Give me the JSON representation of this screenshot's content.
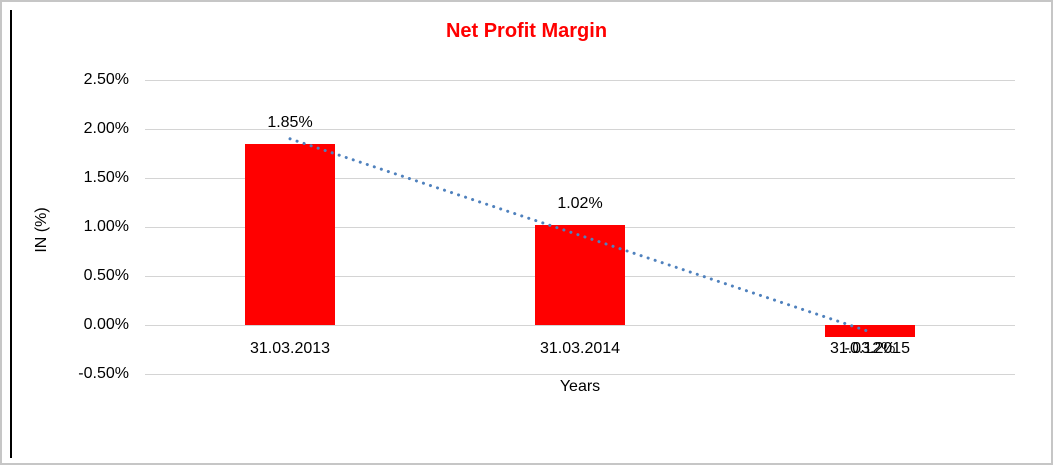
{
  "chart_data": {
    "type": "bar",
    "title": "Net Profit Margin",
    "title_color": "#FF0000",
    "xlabel": "Years",
    "ylabel": "IN (%)",
    "categories": [
      "31.03.2013",
      "31.03.2014",
      "31.03.2015"
    ],
    "values": [
      1.85,
      1.02,
      -0.12
    ],
    "value_labels": [
      "1.85%",
      "1.02%",
      "-0.12%"
    ],
    "bar_color": "#FF0000",
    "ylim": [
      -0.5,
      2.5
    ],
    "ytick_values": [
      2.5,
      2.0,
      1.5,
      1.0,
      0.5,
      0.0,
      -0.5
    ],
    "ytick_labels": [
      "2.50%",
      "2.00%",
      "1.50%",
      "1.00%",
      "0.50%",
      "0.00%",
      "-0.50%"
    ],
    "grid": true,
    "gridline_color": "#D4D4D4",
    "legend": "none",
    "trendline": {
      "style": "dotted",
      "color": "#4F81BD",
      "endpoint_values": [
        1.9,
        -0.07
      ]
    }
  }
}
